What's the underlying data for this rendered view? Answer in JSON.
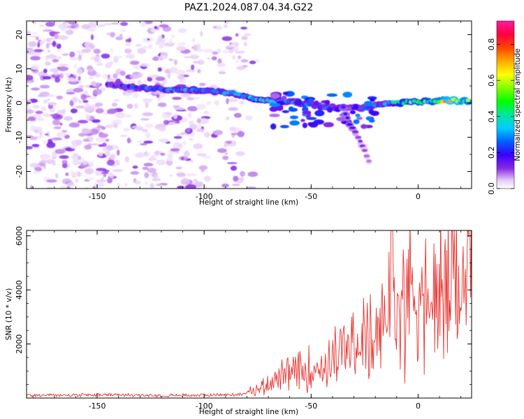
{
  "title": "PAZ1.2024.087.04.34.G22",
  "chart_data": [
    {
      "type": "heatmap",
      "xlabel": "Height of straight line (km)",
      "ylabel": "Frequency (Hz)",
      "xlim": [
        -183,
        25
      ],
      "ylim": [
        -25,
        24
      ],
      "xticks": [
        -150,
        -100,
        -50,
        0
      ],
      "yticks": [
        -20,
        -10,
        0,
        10,
        20
      ],
      "xtick_labels": [
        "-150",
        "-100",
        "-50",
        "0"
      ],
      "ytick_labels": [
        "-20",
        "-10",
        "0",
        "10",
        "20"
      ],
      "colorbar": {
        "label": "Normalized spectral amplitude",
        "range": [
          0,
          0.93
        ],
        "ticks": [
          0.0,
          0.2,
          0.4,
          0.6,
          0.8
        ],
        "tick_labels": [
          "0.0",
          "0.2",
          "0.4",
          "0.6",
          "0.8"
        ],
        "colormap": "gist_ncar-like (white-violet-blue-cyan-green-yellow-orange-red-magenta)"
      },
      "ridge": [
        {
          "x": -145,
          "y": 5.5,
          "v": 0.22
        },
        {
          "x": -135,
          "y": 4.8,
          "v": 0.25
        },
        {
          "x": -125,
          "y": 4.2,
          "v": 0.28
        },
        {
          "x": -115,
          "y": 4.0,
          "v": 0.3
        },
        {
          "x": -105,
          "y": 3.8,
          "v": 0.32
        },
        {
          "x": -95,
          "y": 3.5,
          "v": 0.3
        },
        {
          "x": -85,
          "y": 2.8,
          "v": 0.32
        },
        {
          "x": -75,
          "y": 1.2,
          "v": 0.4
        },
        {
          "x": -65,
          "y": 0.5,
          "v": 0.3
        },
        {
          "x": -55,
          "y": 0.0,
          "v": 0.3
        },
        {
          "x": -45,
          "y": -1.0,
          "v": 0.25
        },
        {
          "x": -35,
          "y": -1.5,
          "v": 0.28
        },
        {
          "x": -25,
          "y": -1.5,
          "v": 0.25
        },
        {
          "x": -15,
          "y": 0.0,
          "v": 0.3
        },
        {
          "x": -5,
          "y": 0.2,
          "v": 0.55
        },
        {
          "x": 5,
          "y": 0.5,
          "v": 0.5
        },
        {
          "x": 15,
          "y": 0.8,
          "v": 0.75
        },
        {
          "x": 25,
          "y": 0.5,
          "v": 0.6
        }
      ],
      "branch": [
        {
          "x": -32,
          "y": -6.0,
          "v": 0.18
        },
        {
          "x": -28,
          "y": -10.0,
          "v": 0.12
        },
        {
          "x": -25,
          "y": -14.0,
          "v": 0.1
        },
        {
          "x": -22,
          "y": -18.5,
          "v": 0.08
        }
      ]
    },
    {
      "type": "line",
      "xlabel": "Height of straight line (km)",
      "ylabel": "SNR (10 * v/v)",
      "xlim": [
        -183,
        25
      ],
      "ylim": [
        0,
        6200
      ],
      "xticks": [
        -150,
        -100,
        -50,
        0
      ],
      "yticks": [
        2000,
        4000,
        6000
      ],
      "xtick_labels": [
        "-150",
        "-100",
        "-50",
        "0"
      ],
      "ytick_labels": [
        "2000",
        "4000",
        "6000"
      ],
      "color": "#e8332f",
      "series": [
        {
          "x": [
            -183,
            -170,
            -160,
            -150,
            -140,
            -130,
            -120,
            -110,
            -100,
            -90,
            -85,
            -80,
            -75,
            -70,
            -65,
            -60,
            -55,
            -50,
            -45,
            -40,
            -35,
            -30,
            -25,
            -20,
            -15,
            -12,
            -10,
            -5,
            0,
            5,
            10,
            15,
            20,
            25
          ],
          "y": [
            100,
            110,
            100,
            120,
            110,
            100,
            100,
            105,
            110,
            120,
            130,
            180,
            300,
            550,
            700,
            800,
            900,
            1000,
            1100,
            1350,
            1600,
            1800,
            2000,
            1750,
            2700,
            5200,
            3000,
            3700,
            3900,
            3000,
            3500,
            4000,
            4200,
            4300
          ]
        }
      ]
    }
  ]
}
